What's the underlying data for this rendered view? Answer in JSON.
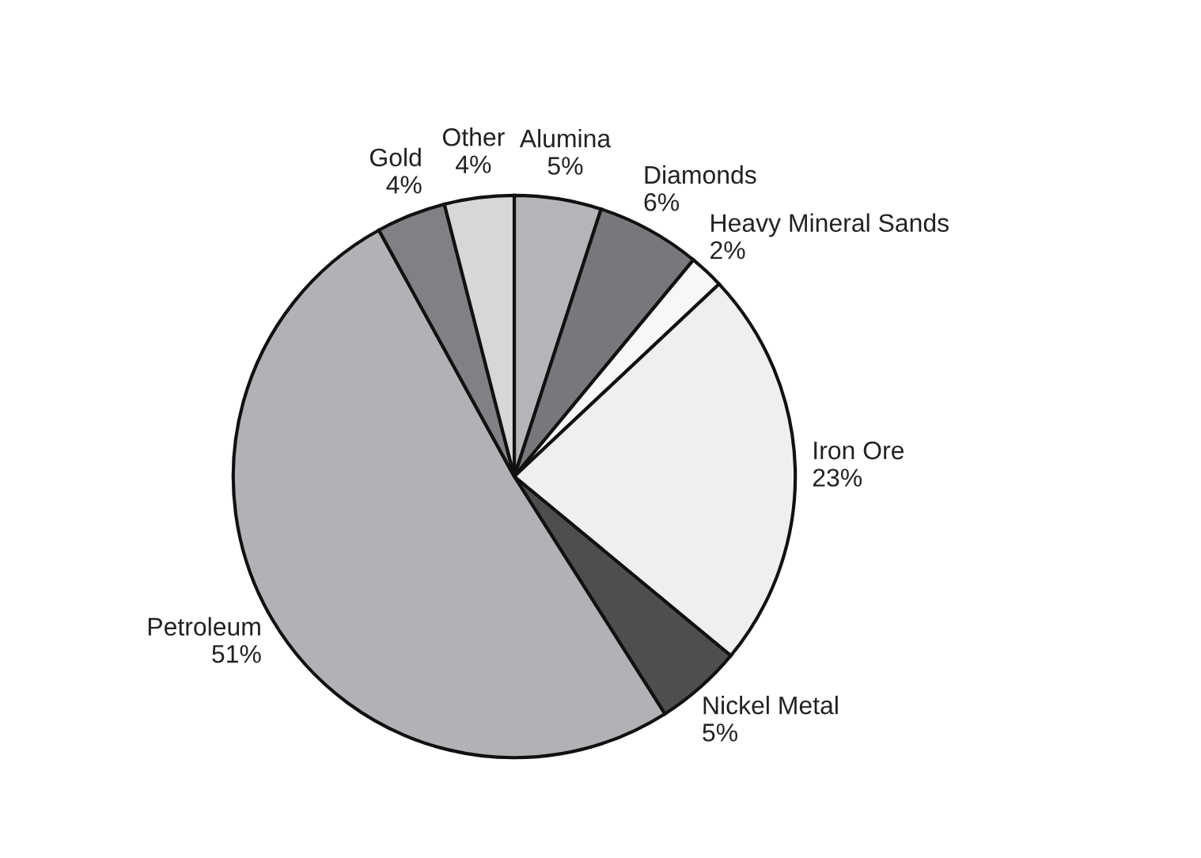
{
  "chart_data": {
    "type": "pie",
    "categories": [
      "Alumina",
      "Diamonds",
      "Heavy Mineral Sands",
      "Iron Ore",
      "Nickel Metal",
      "Petroleum",
      "Gold",
      "Other"
    ],
    "values": [
      5,
      6,
      2,
      23,
      5,
      51,
      4,
      4
    ],
    "value_labels": [
      "5%",
      "6%",
      "2%",
      "23%",
      "5%",
      "51%",
      "4%",
      "4%"
    ],
    "colors": [
      "#b4b5b8",
      "#77787b",
      "#f7f7f7",
      "#eeeff1",
      "#4d4e50",
      "#b1b2b5",
      "#808184",
      "#d6d7d9"
    ]
  }
}
